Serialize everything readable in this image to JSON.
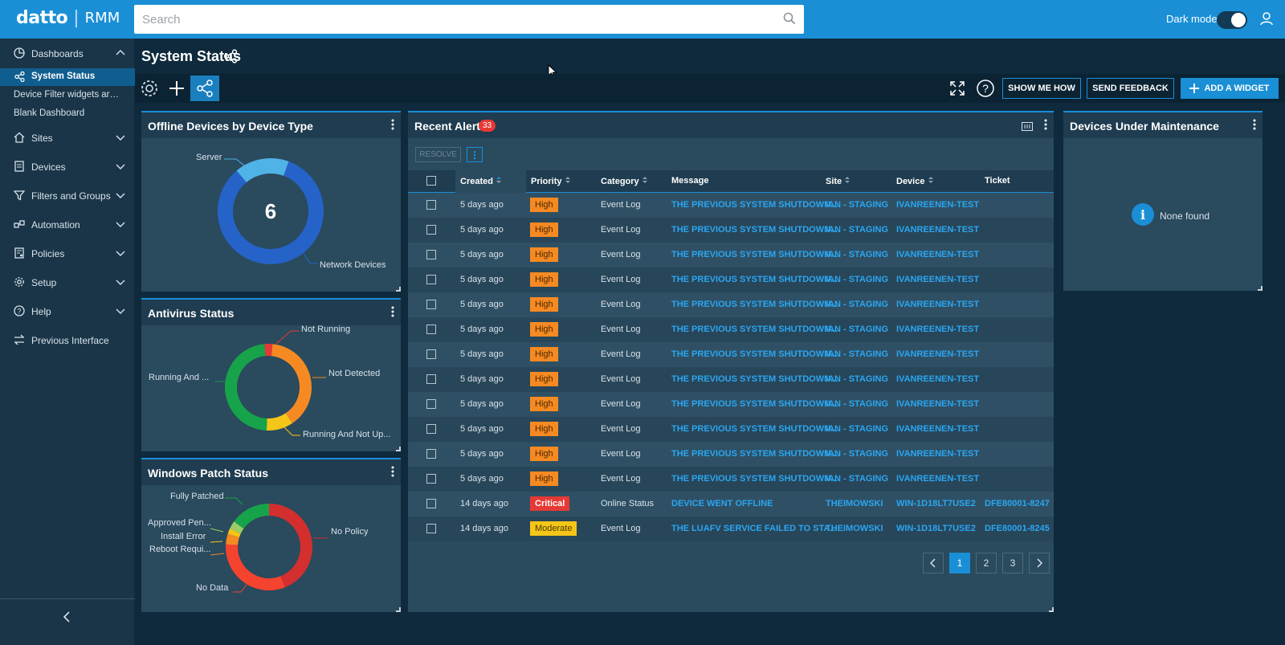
{
  "app": {
    "brand": "datto",
    "product": "RMM"
  },
  "search": {
    "placeholder": "Search"
  },
  "topbar": {
    "dark_mode_label": "Dark mode"
  },
  "sidebar": {
    "dashboards": "Dashboards",
    "sub_items": [
      "System Status",
      "Device Filter widgets are ...",
      "Blank Dashboard"
    ],
    "items": [
      "Sites",
      "Devices",
      "Filters and Groups",
      "Automation",
      "Policies",
      "Setup",
      "Help",
      "Previous Interface"
    ]
  },
  "page": {
    "title": "System Status"
  },
  "toolbar": {
    "show_me_how": "SHOW ME HOW",
    "send_feedback": "SEND FEEDBACK",
    "add_widget": "ADD A WIDGET"
  },
  "widgets": {
    "offline": {
      "title": "Offline Devices by Device Type",
      "center_value": "6",
      "chart_data": {
        "type": "pie",
        "categories": [
          "Server",
          "Network Devices"
        ],
        "values": [
          1,
          5
        ],
        "colors": [
          "#4fb3e6",
          "#2563c9"
        ]
      }
    },
    "antivirus": {
      "title": "Antivirus Status",
      "chart_data": {
        "type": "pie",
        "categories": [
          "Not Running",
          "Not Detected",
          "Running And Not Up...",
          "Running And ..."
        ],
        "values": [
          3,
          39,
          10,
          48
        ],
        "colors": [
          "#e53935",
          "#f58a22",
          "#f5c518",
          "#17a34a"
        ]
      }
    },
    "patch": {
      "title": "Windows Patch Status",
      "chart_data": {
        "type": "pie",
        "categories": [
          "No Policy",
          "No Data",
          "Reboot Requi...",
          "Install Error",
          "Approved Pen...",
          "Fully Patched"
        ],
        "values": [
          44,
          32,
          4,
          2,
          3,
          15
        ],
        "colors": [
          "#d32f2f",
          "#f4432e",
          "#f58a22",
          "#f5c518",
          "#9ccc65",
          "#17a34a"
        ]
      }
    },
    "alerts": {
      "title": "Recent Alerts",
      "count": "33",
      "resolve_label": "RESOLVE",
      "columns": [
        "Created",
        "Priority",
        "Category",
        "Message",
        "Site",
        "Device",
        "Ticket"
      ],
      "rows": [
        {
          "created": "5 days ago",
          "priority": "High",
          "category": "Event Log",
          "message": "THE PREVIOUS SYSTEM SHUTDOWN...",
          "site": "IAN - STAGING",
          "device": "IVANREENEN-TEST",
          "ticket": ""
        },
        {
          "created": "5 days ago",
          "priority": "High",
          "category": "Event Log",
          "message": "THE PREVIOUS SYSTEM SHUTDOWN...",
          "site": "IAN - STAGING",
          "device": "IVANREENEN-TEST",
          "ticket": ""
        },
        {
          "created": "5 days ago",
          "priority": "High",
          "category": "Event Log",
          "message": "THE PREVIOUS SYSTEM SHUTDOWN...",
          "site": "IAN - STAGING",
          "device": "IVANREENEN-TEST",
          "ticket": ""
        },
        {
          "created": "5 days ago",
          "priority": "High",
          "category": "Event Log",
          "message": "THE PREVIOUS SYSTEM SHUTDOWN...",
          "site": "IAN - STAGING",
          "device": "IVANREENEN-TEST",
          "ticket": ""
        },
        {
          "created": "5 days ago",
          "priority": "High",
          "category": "Event Log",
          "message": "THE PREVIOUS SYSTEM SHUTDOWN...",
          "site": "IAN - STAGING",
          "device": "IVANREENEN-TEST",
          "ticket": ""
        },
        {
          "created": "5 days ago",
          "priority": "High",
          "category": "Event Log",
          "message": "THE PREVIOUS SYSTEM SHUTDOWN...",
          "site": "IAN - STAGING",
          "device": "IVANREENEN-TEST",
          "ticket": ""
        },
        {
          "created": "5 days ago",
          "priority": "High",
          "category": "Event Log",
          "message": "THE PREVIOUS SYSTEM SHUTDOWN...",
          "site": "IAN - STAGING",
          "device": "IVANREENEN-TEST",
          "ticket": ""
        },
        {
          "created": "5 days ago",
          "priority": "High",
          "category": "Event Log",
          "message": "THE PREVIOUS SYSTEM SHUTDOWN...",
          "site": "IAN - STAGING",
          "device": "IVANREENEN-TEST",
          "ticket": ""
        },
        {
          "created": "5 days ago",
          "priority": "High",
          "category": "Event Log",
          "message": "THE PREVIOUS SYSTEM SHUTDOWN...",
          "site": "IAN - STAGING",
          "device": "IVANREENEN-TEST",
          "ticket": ""
        },
        {
          "created": "5 days ago",
          "priority": "High",
          "category": "Event Log",
          "message": "THE PREVIOUS SYSTEM SHUTDOWN...",
          "site": "IAN - STAGING",
          "device": "IVANREENEN-TEST",
          "ticket": ""
        },
        {
          "created": "5 days ago",
          "priority": "High",
          "category": "Event Log",
          "message": "THE PREVIOUS SYSTEM SHUTDOWN...",
          "site": "IAN - STAGING",
          "device": "IVANREENEN-TEST",
          "ticket": ""
        },
        {
          "created": "5 days ago",
          "priority": "High",
          "category": "Event Log",
          "message": "THE PREVIOUS SYSTEM SHUTDOWN...",
          "site": "IAN - STAGING",
          "device": "IVANREENEN-TEST",
          "ticket": ""
        },
        {
          "created": "14 days ago",
          "priority": "Critical",
          "category": "Online Status",
          "message": "DEVICE WENT OFFLINE",
          "site": "THEIMOWSKI",
          "device": "WIN-1D18LT7USE2",
          "ticket": "DFE80001-8247"
        },
        {
          "created": "14 days ago",
          "priority": "Moderate",
          "category": "Event Log",
          "message": "THE LUAFV SERVICE FAILED TO STA...",
          "site": "THEIMOWSKI",
          "device": "WIN-1D18LT7USE2",
          "ticket": "DFE80001-8245"
        }
      ],
      "pages": [
        "1",
        "2",
        "3"
      ],
      "current_page": "1"
    },
    "maintenance": {
      "title": "Devices Under Maintenance",
      "empty_text": "None found"
    }
  }
}
